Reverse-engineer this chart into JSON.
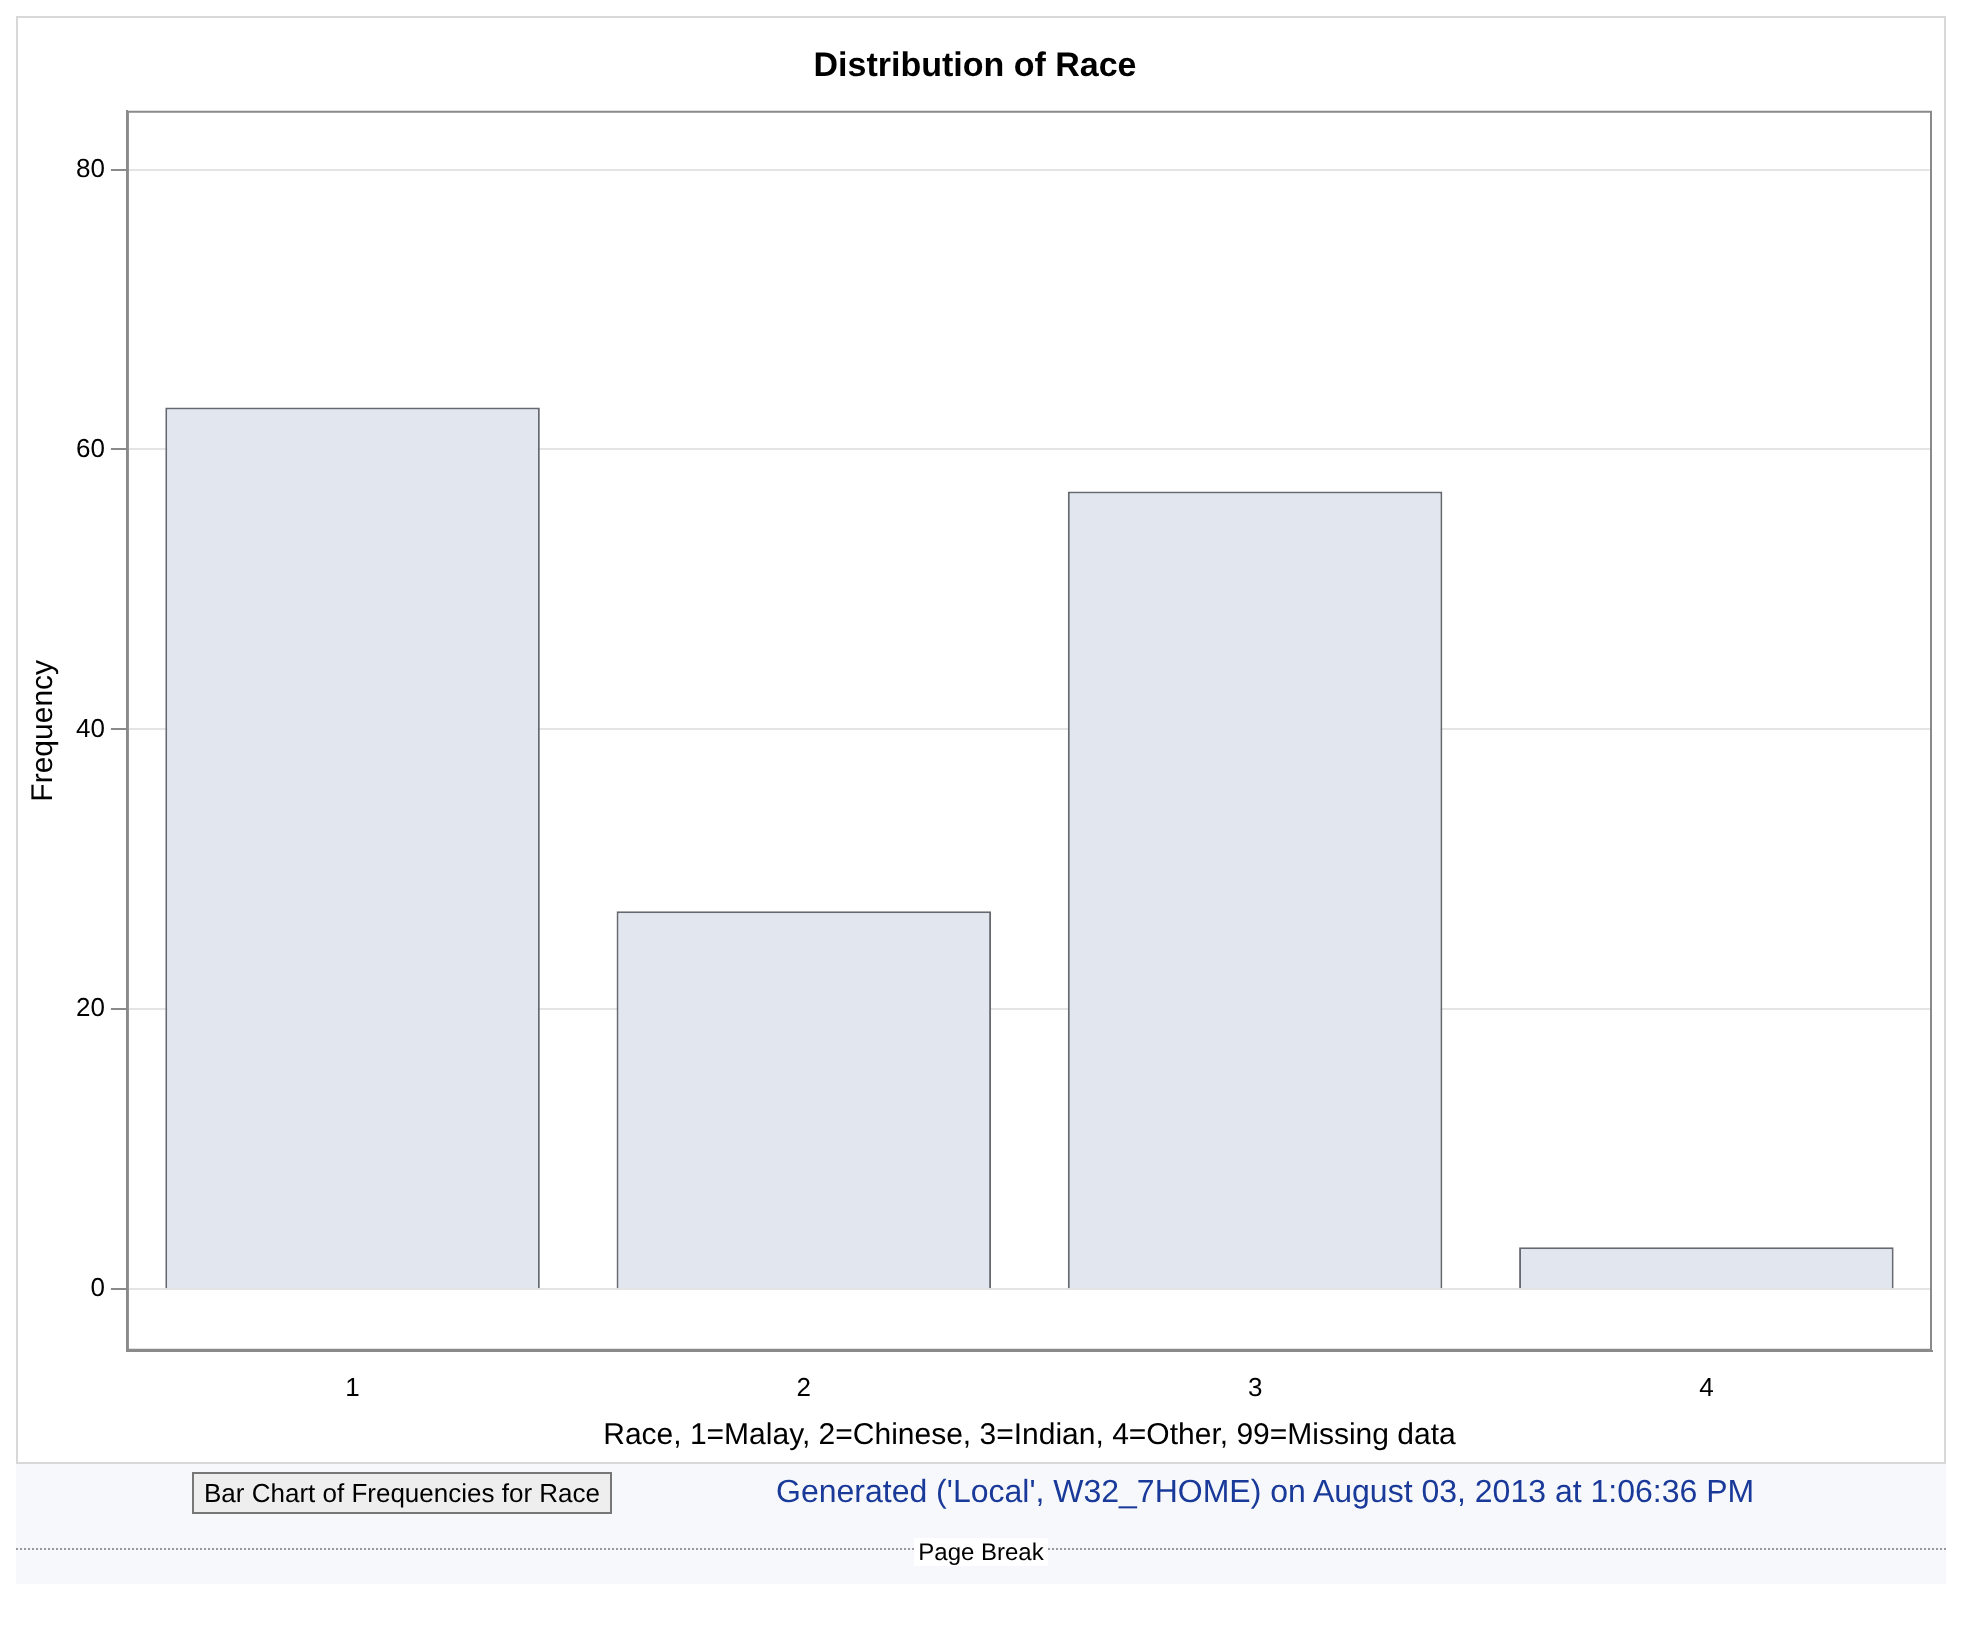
{
  "chart_data": {
    "type": "bar",
    "title": "Distribution of Race",
    "xlabel": "Race, 1=Malay, 2=Chinese, 3=Indian, 4=Other, 99=Missing data",
    "ylabel": "Frequency",
    "categories": [
      "1",
      "2",
      "3",
      "4"
    ],
    "values": [
      63,
      27,
      57,
      3
    ],
    "color": "#e1e6ef",
    "ylim": [
      -4.4,
      84.2
    ],
    "yticks": [
      0,
      20,
      40,
      60,
      80
    ],
    "grid": "y",
    "legend": false,
    "annotations": [
      "Bar Chart of Frequencies for Race",
      "Generated ('Local', W32_7HOME) on August 03, 2013 at 1:06:36 PM",
      "Page Break"
    ]
  }
}
